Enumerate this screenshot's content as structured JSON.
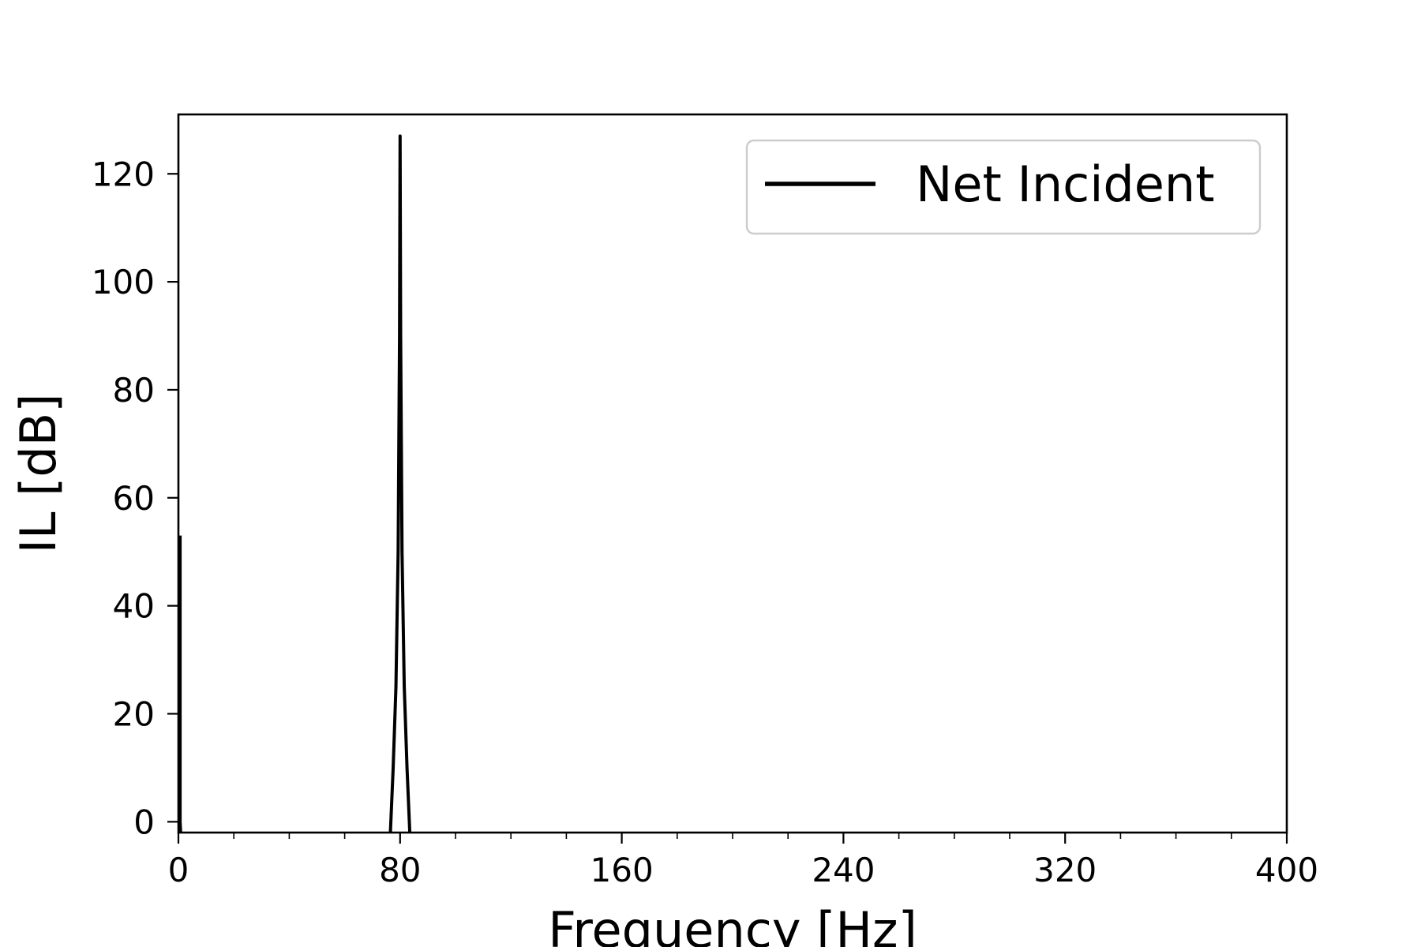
{
  "chart_data": {
    "type": "line",
    "xlabel": "Frequency [Hz]",
    "ylabel": "IL [dB]",
    "xlim": [
      0,
      400
    ],
    "ylim": [
      -2,
      131
    ],
    "xticks": [
      0,
      80,
      160,
      240,
      320,
      400
    ],
    "xticks_minor": [
      20,
      40,
      60,
      100,
      120,
      140,
      180,
      200,
      220,
      260,
      280,
      300,
      340,
      360,
      380
    ],
    "yticks": [
      0,
      20,
      40,
      60,
      80,
      100,
      120
    ],
    "grid": false,
    "legend_position": "upper right",
    "series": [
      {
        "name": "Net Incident",
        "color": "#000000",
        "segments": [
          {
            "x": [
              0.6,
              0.6,
              0.8
            ],
            "y": [
              53,
              0,
              -2
            ]
          },
          {
            "x": [
              76.5,
              77.5,
              78.5,
              79.3,
              79.8,
              80.0,
              80.2,
              80.7,
              81.5,
              82.5,
              83.5
            ],
            "y": [
              -2,
              10,
              25,
              50,
              90,
              127,
              90,
              50,
              25,
              10,
              -2
            ]
          }
        ]
      }
    ]
  }
}
